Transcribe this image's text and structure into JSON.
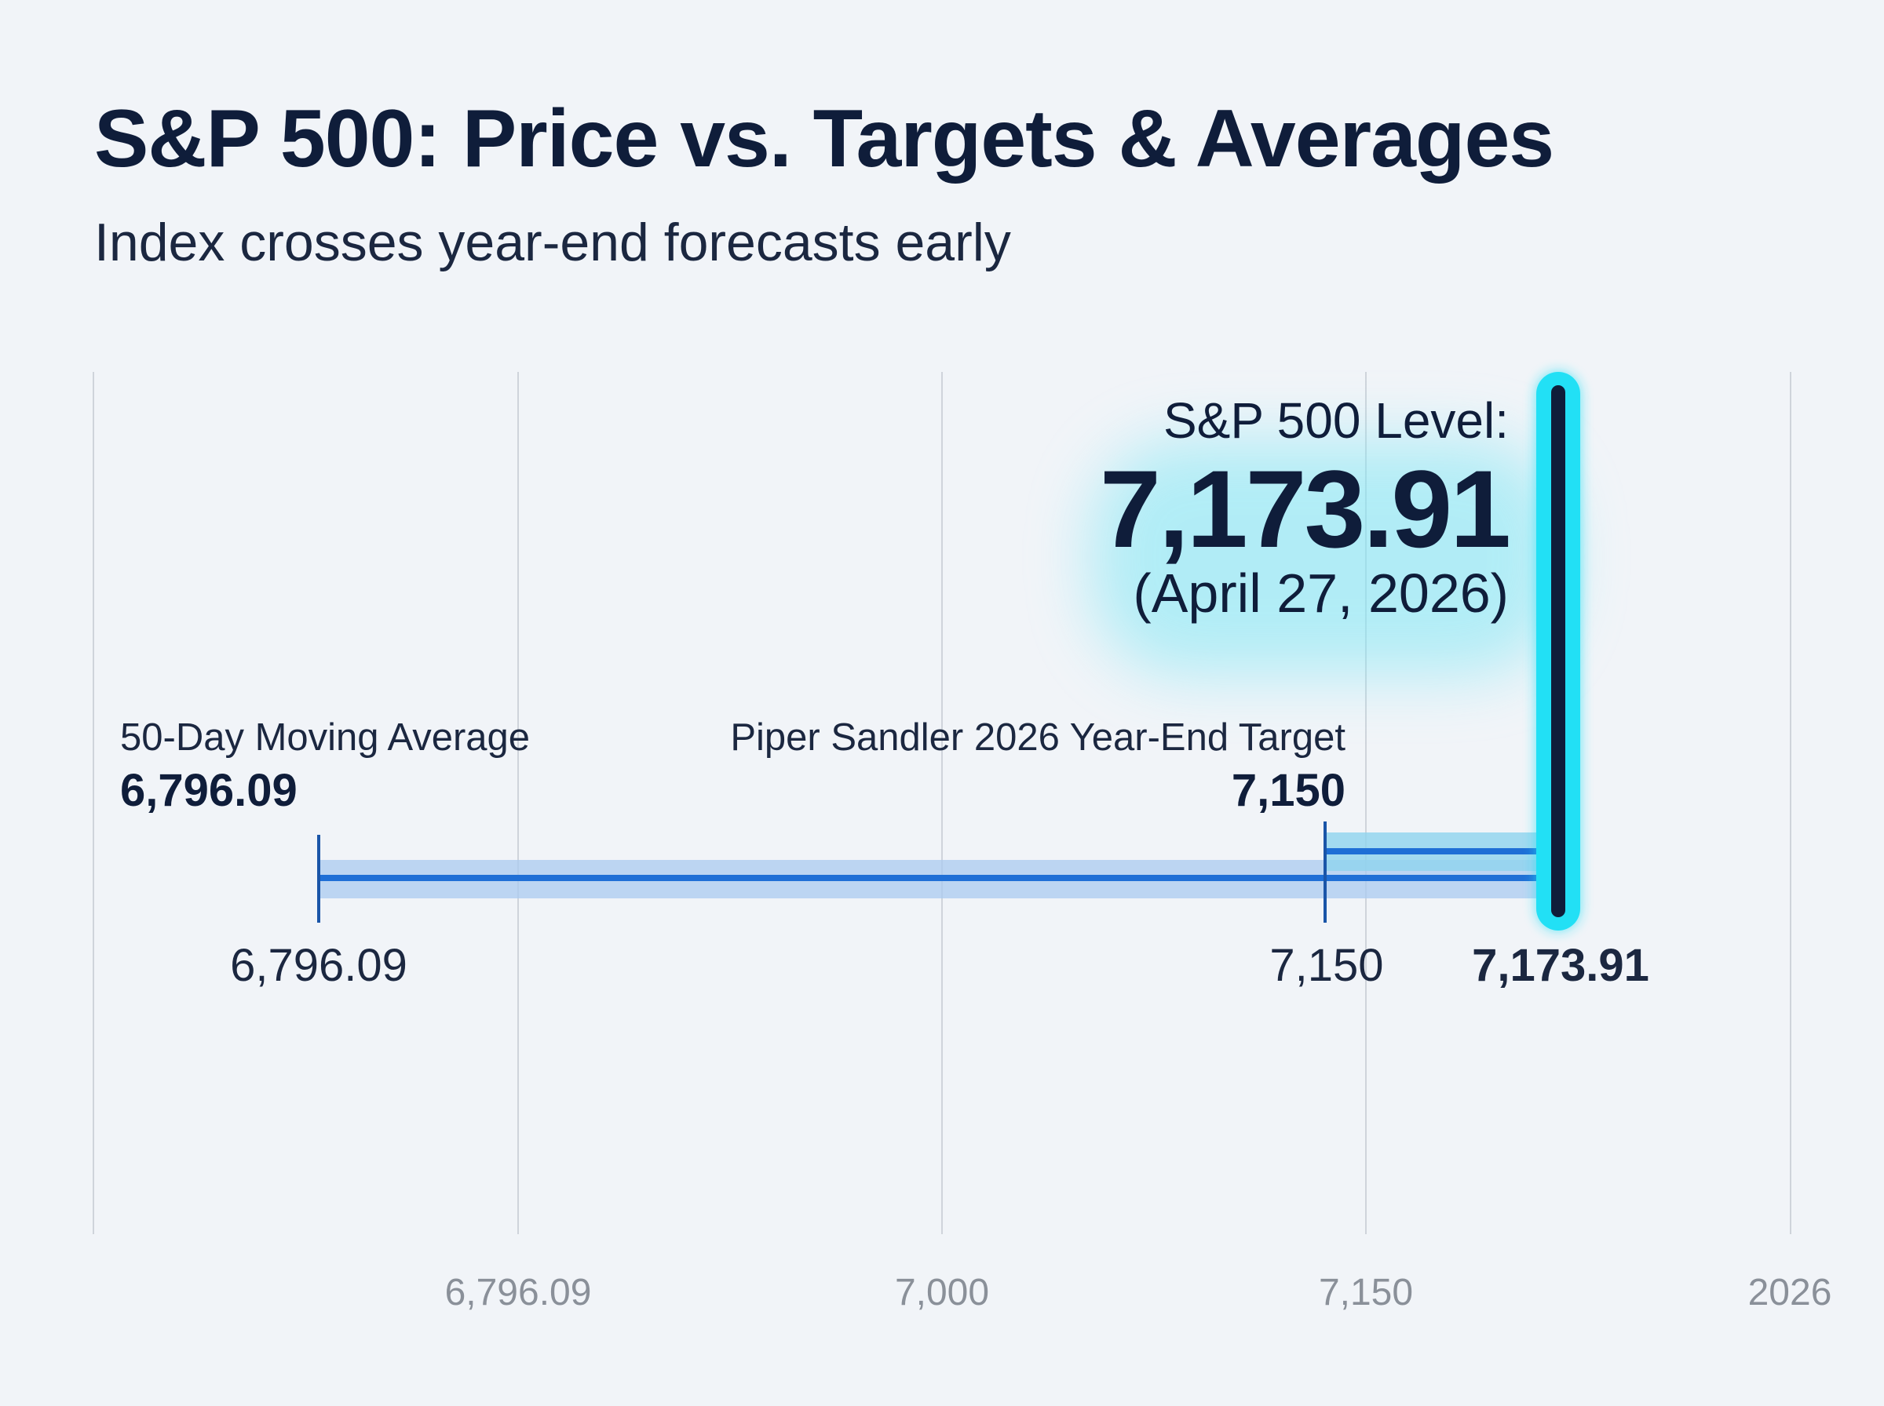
{
  "title": "S&P 500: Price vs. Targets & Averages",
  "subtitle": "Index crosses year-end forecasts early",
  "chart_data": {
    "type": "range-bar",
    "title": "S&P 500: Price vs. Targets & Averages",
    "subtitle": "Index crosses year-end forecasts early",
    "x_tick_labels": [
      "6,796.09",
      "7,000",
      "7,150",
      "2026"
    ],
    "grid": true,
    "markers": [
      {
        "name": "50-Day Moving Average",
        "value": 6796.09,
        "label": "6,796.09",
        "below_label": "6,796.09"
      },
      {
        "name": "Piper Sandler 2026 Year-End Target",
        "value": 7150,
        "label": "7,150",
        "below_label": "7,150"
      }
    ],
    "current": {
      "heading": "S&P 500 Level:",
      "value": 7173.91,
      "value_label": "7,173.91",
      "date": "(April 27, 2026)",
      "below_label": "7,173.91"
    },
    "colors": {
      "bar": "#1f6fd6",
      "band": "#a9cbf0",
      "target_band": "#8fd3ee",
      "highlight": "#22e0f5",
      "price_line": "#0f1d3a"
    }
  }
}
